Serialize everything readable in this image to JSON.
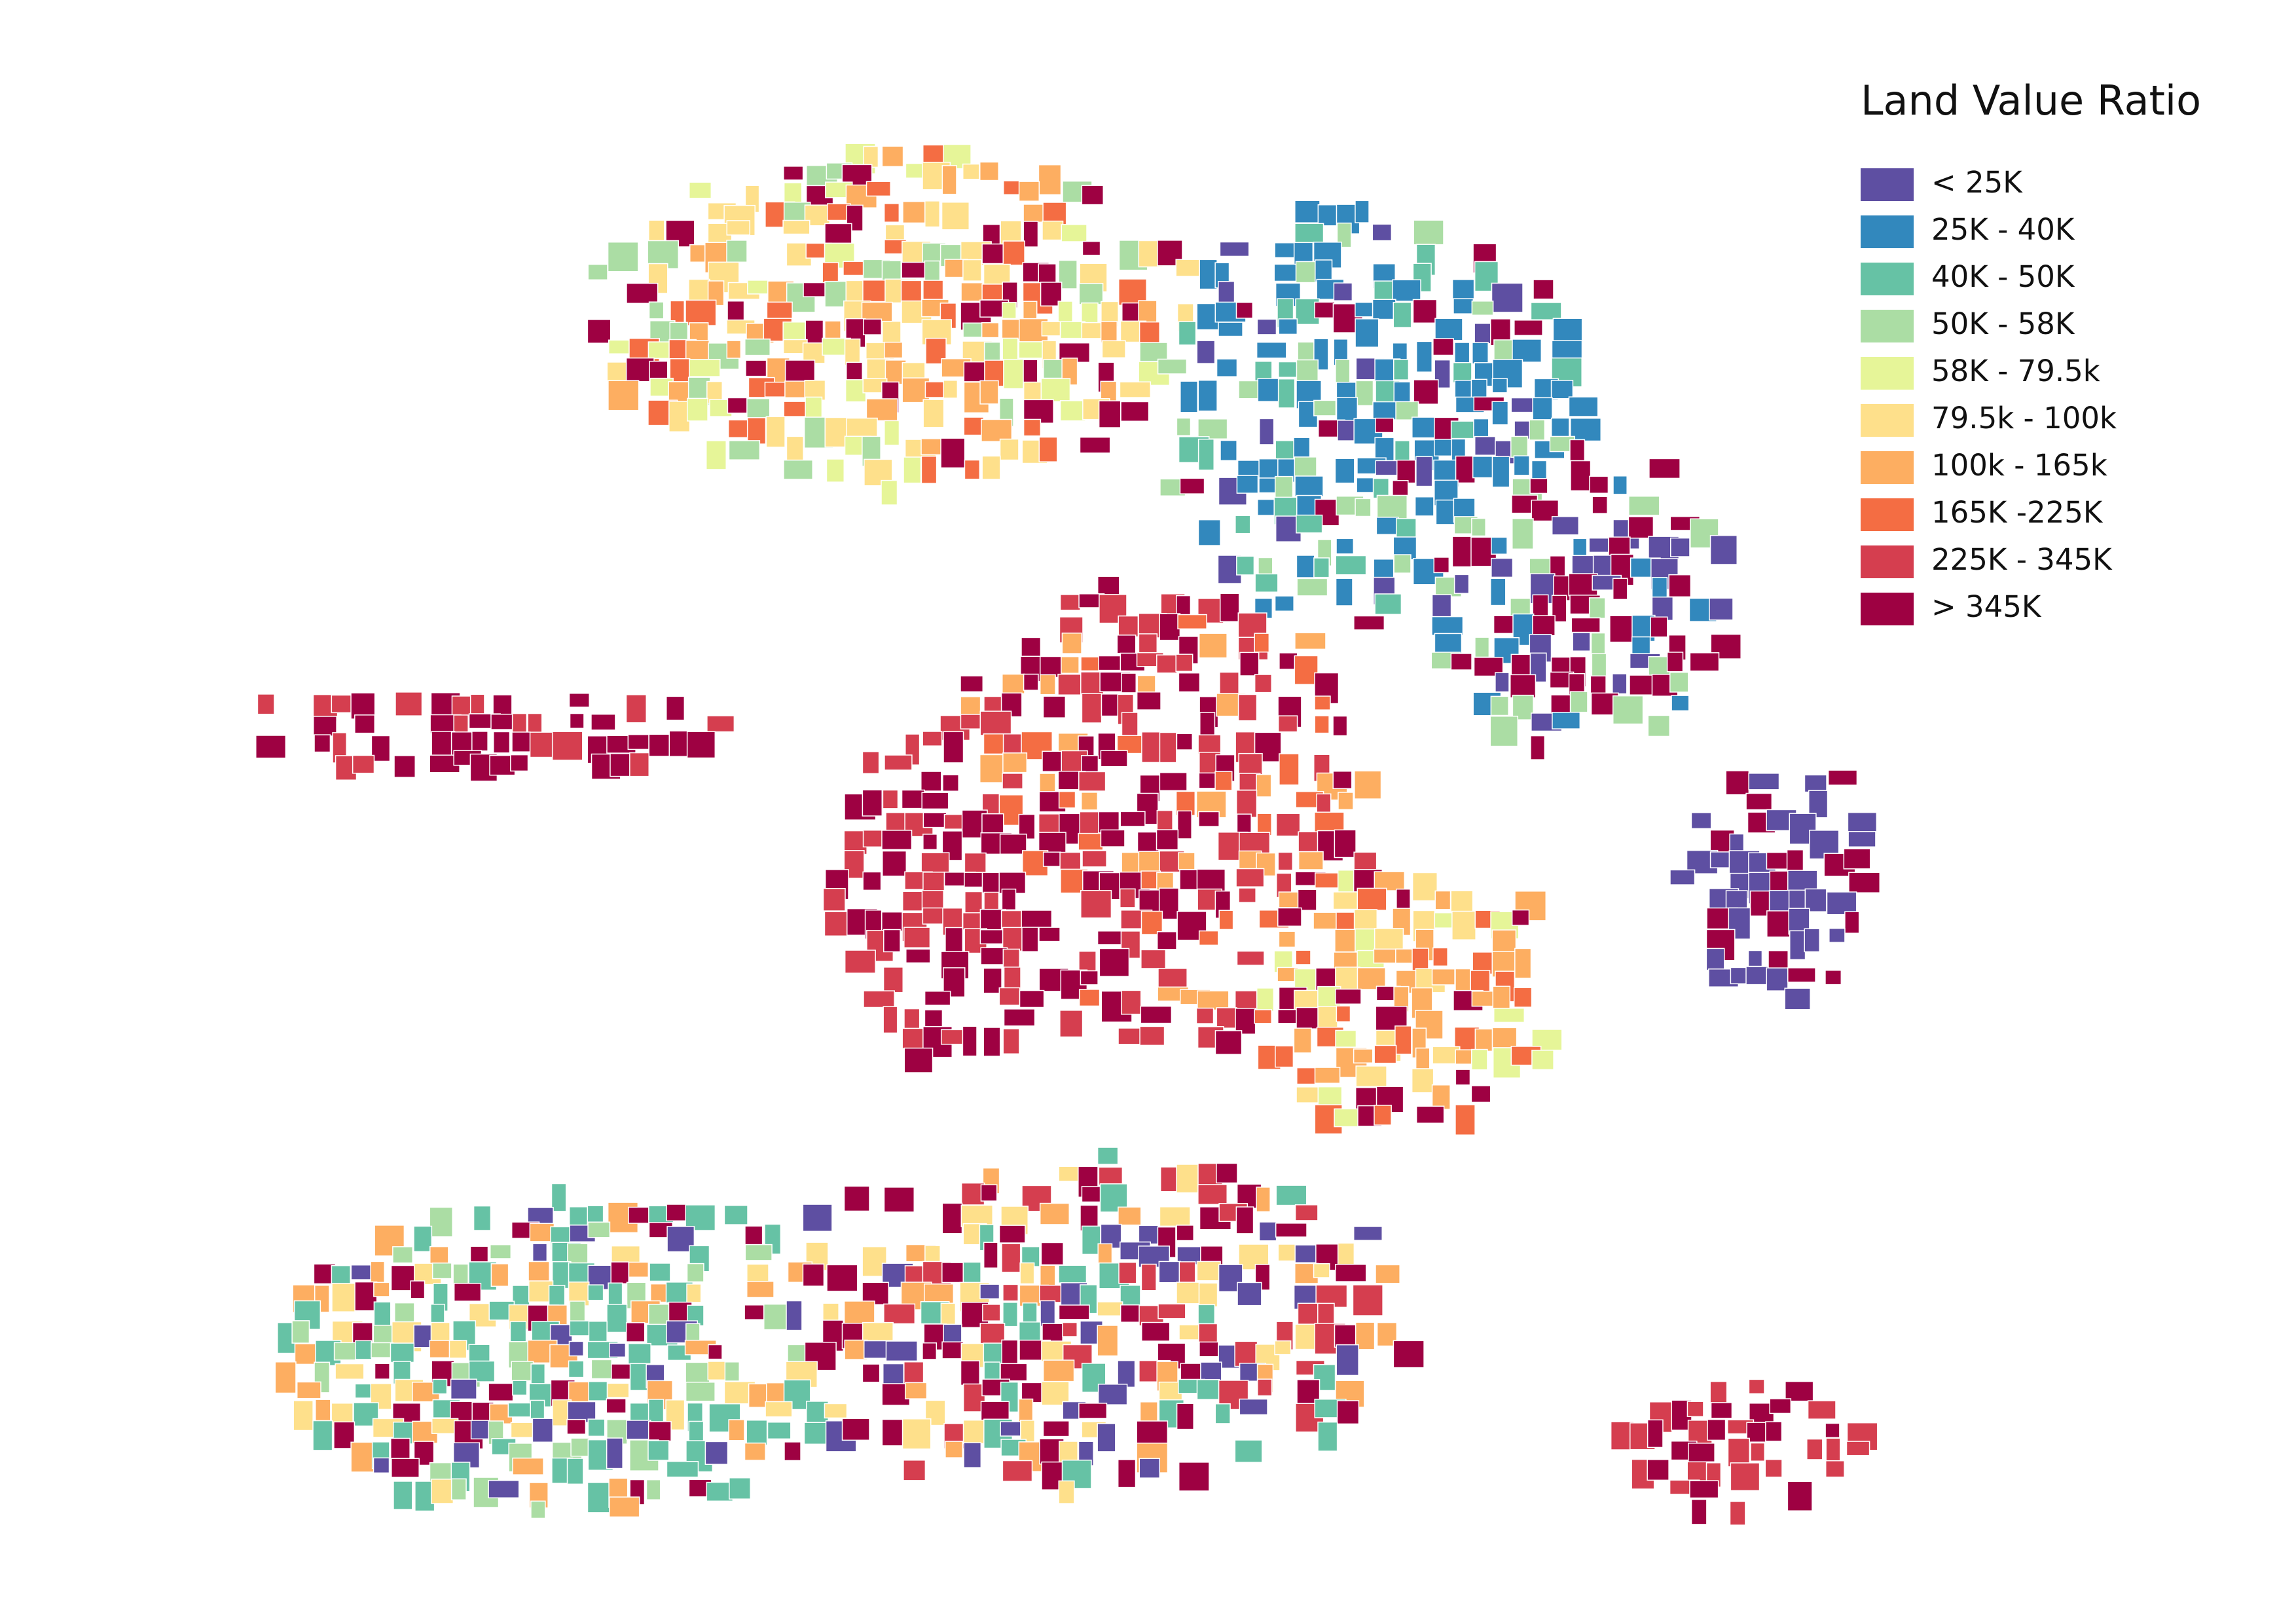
{
  "legend": {
    "title": "Land Value Ratio",
    "items": [
      {
        "label": "< 25K",
        "color": "#5e4fa2"
      },
      {
        "label": "25K - 40K",
        "color": "#3288bd"
      },
      {
        "label": "40K - 50K",
        "color": "#66c2a5"
      },
      {
        "label": "50K - 58K",
        "color": "#abdda4"
      },
      {
        "label": "58K - 79.5k",
        "color": "#e6f598"
      },
      {
        "label": "79.5k - 100k",
        "color": "#fee08b"
      },
      {
        "label": "100k - 165k",
        "color": "#fdae61"
      },
      {
        "label": "165K -225K",
        "color": "#f46d43"
      },
      {
        "label": "225K - 345K",
        "color": "#d53e4f"
      },
      {
        "label": "> 345K",
        "color": "#9e0142"
      }
    ]
  }
}
